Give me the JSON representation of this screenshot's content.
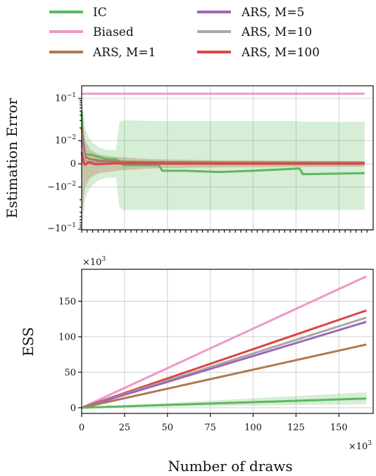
{
  "chart_data": [
    {
      "type": "line",
      "panel": "top",
      "ylabel": "Estimation Error",
      "yscale": "symlog",
      "yticks": [
        "10^{-1}",
        "10^{-2}",
        "0",
        "-10^{-2}",
        "-10^{-1}"
      ],
      "xlim": [
        0,
        170000
      ],
      "grid": true,
      "series": [
        {
          "name": "IC",
          "color": "#5cb85c",
          "x": [
            0,
            1000,
            2000,
            3000,
            5000,
            10000,
            15000,
            20000,
            22000,
            24000,
            30000,
            45000,
            47000,
            60000,
            80000,
            100000,
            127000,
            129000,
            165000
          ],
          "y": [
            0.05,
            0.005,
            0.004,
            0.004,
            0.004,
            0.003,
            0.002,
            0.002,
            0.001,
            -0.0005,
            -0.0006,
            -0.0006,
            -0.003,
            -0.003,
            -0.0035,
            -0.003,
            -0.002,
            -0.0045,
            -0.004
          ],
          "band_upper": [
            0.1,
            0.05,
            0.02,
            0.015,
            0.01,
            0.007,
            0.006,
            0.006,
            0.028,
            0.03,
            0.03,
            0.029,
            0.029,
            0.029,
            0.029,
            0.029,
            0.029,
            0.028,
            0.028
          ],
          "band_lower": [
            -0.1,
            -0.05,
            -0.02,
            -0.015,
            -0.01,
            -0.007,
            -0.006,
            -0.006,
            -0.03,
            -0.035,
            -0.035,
            -0.035,
            -0.035,
            -0.035,
            -0.035,
            -0.035,
            -0.035,
            -0.035,
            -0.035
          ]
        },
        {
          "name": "Biased",
          "color": "#f098c8",
          "x": [
            0,
            165000
          ],
          "y": [
            0.13,
            0.13
          ]
        },
        {
          "name": "ARS, M=1",
          "color": "#b07850",
          "x": [
            0,
            2000,
            5000,
            10000,
            20000,
            40000,
            80000,
            165000
          ],
          "y": [
            0.02,
            0.003,
            0.002,
            0.0015,
            0.001,
            0.0008,
            0.0006,
            0.0005
          ],
          "band_upper": [
            0.05,
            0.01,
            0.006,
            0.004,
            0.003,
            0.002,
            0.0015,
            0.0012
          ],
          "band_lower": [
            -0.05,
            -0.01,
            -0.006,
            -0.004,
            -0.003,
            -0.002,
            -0.0015,
            -0.0012
          ]
        },
        {
          "name": "ARS, M=5",
          "color": "#9b68b8",
          "x": [
            0,
            2000,
            5000,
            10000,
            20000,
            40000,
            80000,
            165000
          ],
          "y": [
            0.01,
            0.001,
            0.0008,
            0.0005,
            0.0003,
            0.0002,
            0.0001,
            0.0001
          ]
        },
        {
          "name": "ARS, M=10",
          "color": "#a8a8a8",
          "x": [
            0,
            2000,
            5000,
            10000,
            20000,
            40000,
            80000,
            165000
          ],
          "y": [
            0.008,
            0.0008,
            0.0005,
            0.0003,
            0.0002,
            0.0001,
            0.0001,
            0.0001
          ]
        },
        {
          "name": "ARS, M=100",
          "color": "#dc4444",
          "x": [
            0,
            1000,
            2000,
            4000,
            8000,
            20000,
            50000,
            100000,
            165000
          ],
          "y": [
            0.005,
            0.0008,
            -0.0004,
            0.0006,
            -0.0002,
            0.0002,
            0.0001,
            0.0001,
            0.0001
          ]
        }
      ]
    },
    {
      "type": "line",
      "panel": "bottom",
      "ylabel": "ESS",
      "xlabel": "Number of draws",
      "y_multiplier": "×10^3",
      "x_multiplier": "×10^3",
      "xticks": [
        0,
        25,
        50,
        75,
        100,
        125,
        150
      ],
      "yticks": [
        0,
        50,
        100,
        150
      ],
      "xlim": [
        0,
        170
      ],
      "ylim": [
        -8,
        195
      ],
      "grid": true,
      "series": [
        {
          "name": "Biased",
          "color": "#f098c8",
          "x": [
            0,
            166
          ],
          "y": [
            0,
            185
          ]
        },
        {
          "name": "ARS, M=100",
          "color": "#dc4444",
          "x": [
            0,
            166
          ],
          "y": [
            0,
            137
          ]
        },
        {
          "name": "ARS, M=10",
          "color": "#a8a8a8",
          "x": [
            0,
            166
          ],
          "y": [
            0,
            127
          ]
        },
        {
          "name": "ARS, M=5",
          "color": "#9b68b8",
          "x": [
            0,
            166
          ],
          "y": [
            0,
            121
          ]
        },
        {
          "name": "ARS, M=1",
          "color": "#b07850",
          "x": [
            0,
            166
          ],
          "y": [
            0,
            89
          ]
        },
        {
          "name": "IC",
          "color": "#5cb85c",
          "x": [
            0,
            166
          ],
          "y": [
            0,
            13
          ],
          "band_upper": [
            0,
            22
          ],
          "band_lower": [
            0,
            5
          ]
        }
      ]
    }
  ],
  "legend": [
    {
      "label": "IC",
      "color": "#5cb85c"
    },
    {
      "label": "Biased",
      "color": "#f098c8"
    },
    {
      "label": "ARS, M=1",
      "color": "#b07850"
    },
    {
      "label": "ARS, M=5",
      "color": "#9b68b8"
    },
    {
      "label": "ARS, M=10",
      "color": "#a8a8a8"
    },
    {
      "label": "ARS, M=100",
      "color": "#dc4444"
    }
  ]
}
